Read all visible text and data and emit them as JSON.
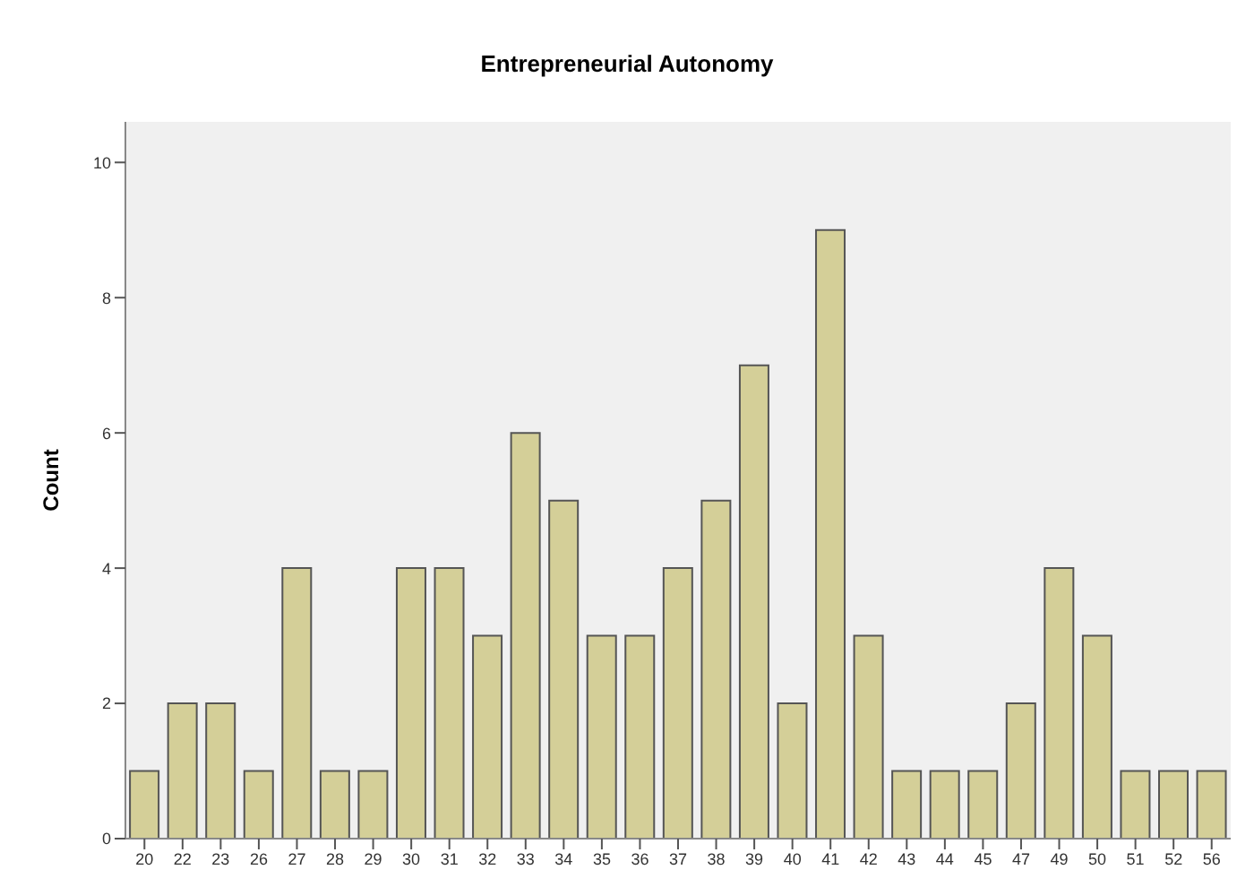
{
  "chart_data": {
    "type": "bar",
    "title": "Entrepreneurial Autonomy",
    "ylabel": "Count",
    "categories": [
      "20",
      "22",
      "23",
      "26",
      "27",
      "28",
      "29",
      "30",
      "31",
      "32",
      "33",
      "34",
      "35",
      "36",
      "37",
      "38",
      "39",
      "40",
      "41",
      "42",
      "43",
      "44",
      "45",
      "47",
      "49",
      "50",
      "51",
      "52",
      "56"
    ],
    "values": [
      1,
      2,
      2,
      1,
      4,
      1,
      1,
      4,
      4,
      3,
      6,
      5,
      3,
      3,
      4,
      5,
      7,
      2,
      9,
      3,
      1,
      1,
      1,
      2,
      4,
      3,
      1,
      1,
      1
    ],
    "color": "#d4cf98",
    "ylim": [
      0,
      10.6
    ],
    "yticks": [
      0,
      2,
      4,
      6,
      8,
      10
    ],
    "grid": false,
    "legend": false
  }
}
